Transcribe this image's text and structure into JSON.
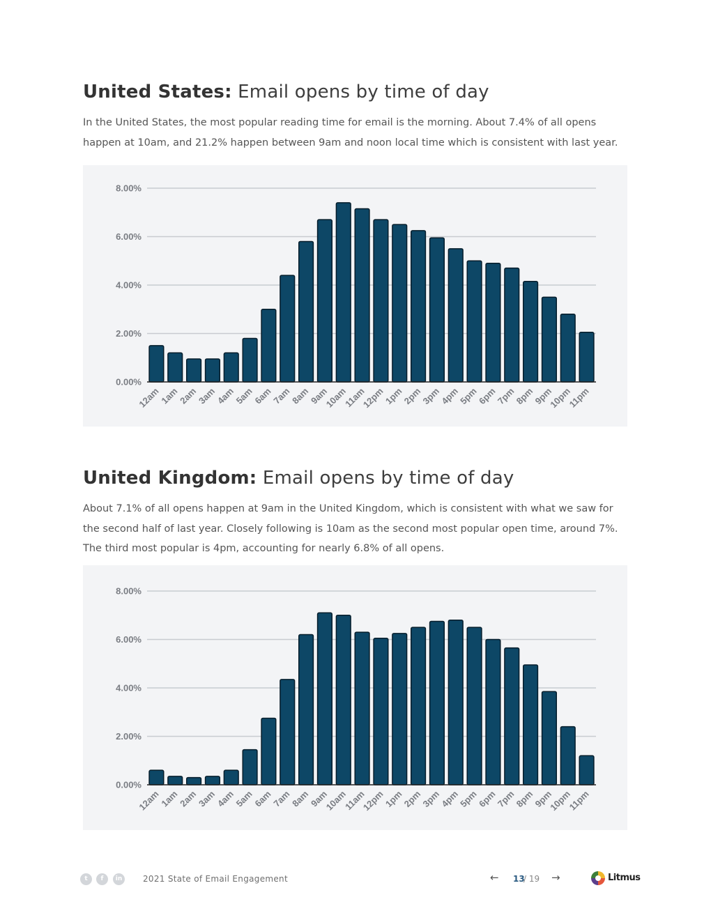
{
  "us": {
    "title_strong": "United States:",
    "title_rest": " Email opens by time of day",
    "body": "In the United States, the most popular reading time for email is the morning. About 7.4% of all opens happen at 10am, and 21.2% happen between 9am and noon local time which is consistent with last year."
  },
  "uk": {
    "title_strong": "United Kingdom:",
    "title_rest": " Email opens by time of day",
    "body": "About 7.1% of all opens happen at 9am in the United Kingdom, which is consistent with what we saw for the second half of last year. Closely following is 10am as the second most popular open time, around 7%. The third most popular is 4pm, accounting for nearly 6.8% of all opens."
  },
  "colors": {
    "bar": "#0d4766",
    "bar_stroke": "#061d2b",
    "grid": "#c8cbd0",
    "tick": "#7a7d83",
    "panel": "#f3f4f6"
  },
  "chart_data": [
    {
      "type": "bar",
      "id": "us-chart",
      "title": "",
      "xlabel": "",
      "ylabel": "",
      "categories": [
        "12am",
        "1am",
        "2am",
        "3am",
        "4am",
        "5am",
        "6am",
        "7am",
        "8am",
        "9am",
        "10am",
        "11am",
        "12pm",
        "1pm",
        "2pm",
        "3pm",
        "4pm",
        "5pm",
        "6pm",
        "7pm",
        "8pm",
        "9pm",
        "10pm",
        "11pm"
      ],
      "values": [
        1.5,
        1.2,
        0.95,
        0.95,
        1.2,
        1.8,
        3.0,
        4.4,
        5.8,
        6.7,
        7.4,
        7.15,
        6.7,
        6.5,
        6.25,
        5.95,
        5.5,
        5.0,
        4.9,
        4.7,
        4.15,
        3.5,
        2.8,
        2.05
      ],
      "ylim": [
        0,
        8
      ],
      "yticks": [
        "0.00%",
        "2.00%",
        "4.00%",
        "6.00%",
        "8.00%"
      ],
      "grid": true
    },
    {
      "type": "bar",
      "id": "uk-chart",
      "title": "",
      "xlabel": "",
      "ylabel": "",
      "categories": [
        "12am",
        "1am",
        "2am",
        "3am",
        "4am",
        "5am",
        "6am",
        "7am",
        "8am",
        "9am",
        "10am",
        "11am",
        "12pm",
        "1pm",
        "2pm",
        "3pm",
        "4pm",
        "5pm",
        "6pm",
        "7pm",
        "8pm",
        "9pm",
        "10pm",
        "11pm"
      ],
      "values": [
        0.6,
        0.35,
        0.3,
        0.35,
        0.6,
        1.45,
        2.75,
        4.35,
        6.2,
        7.1,
        7.0,
        6.3,
        6.05,
        6.25,
        6.5,
        6.75,
        6.8,
        6.5,
        6.0,
        5.65,
        4.95,
        3.85,
        2.4,
        1.2
      ],
      "ylim": [
        0,
        8
      ],
      "yticks": [
        "0.00%",
        "2.00%",
        "4.00%",
        "6.00%",
        "8.00%"
      ],
      "grid": true
    }
  ],
  "footer": {
    "social": [
      {
        "icon": "twitter-icon",
        "glyph": "t"
      },
      {
        "icon": "facebook-icon",
        "glyph": "f"
      },
      {
        "icon": "linkedin-icon",
        "glyph": "in"
      }
    ],
    "title": "2021 State of Email Engagement",
    "prev_glyph": "←",
    "next_glyph": "→",
    "page_current": "13",
    "page_total": "/ 19",
    "logo_text": "Litmus"
  }
}
